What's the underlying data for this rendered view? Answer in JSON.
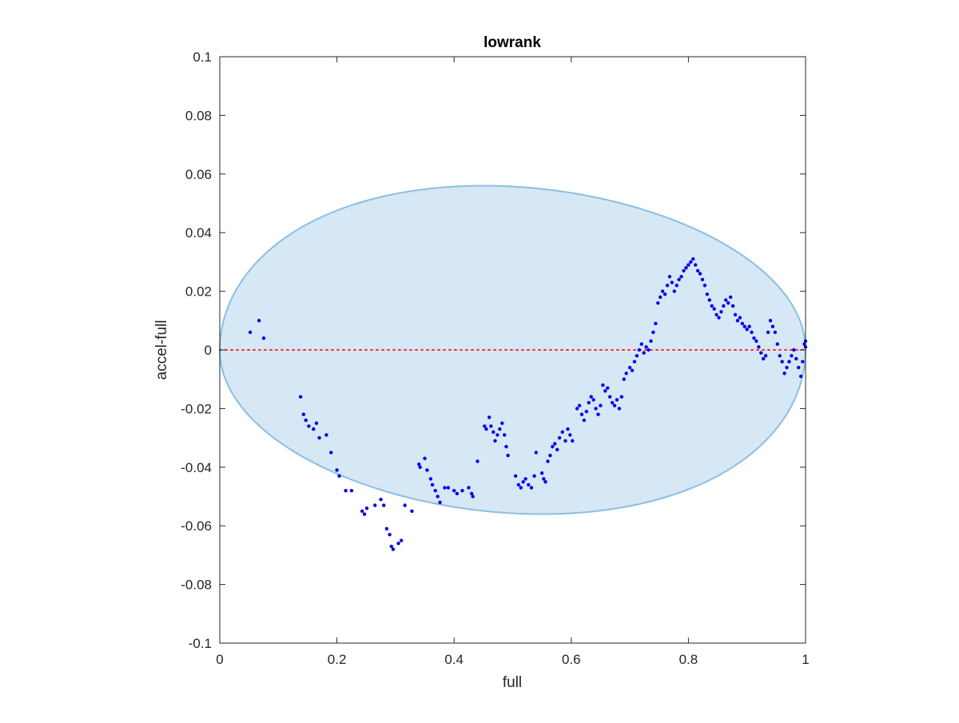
{
  "chart_data": {
    "type": "scatter",
    "title": "lowrank",
    "xlabel": "full",
    "ylabel": "accel-full",
    "xlim": [
      0,
      1
    ],
    "ylim": [
      -0.1,
      0.1
    ],
    "xticks": [
      0,
      0.2,
      0.4,
      0.6,
      0.8,
      1
    ],
    "xtick_labels": [
      "0",
      "0.2",
      "0.4",
      "0.6",
      "0.8",
      "1"
    ],
    "yticks": [
      0.1,
      0.08,
      0.06,
      0.04,
      0.02,
      0,
      -0.02,
      -0.04,
      -0.06,
      -0.08,
      -0.1
    ],
    "ytick_labels": [
      "0.1",
      "0.08",
      "0.06",
      "0.04",
      "0.02",
      "0",
      "-0.02",
      "-0.04",
      "-0.06",
      "-0.08",
      "-0.1"
    ],
    "grid": false,
    "box": true,
    "colors": {
      "points": "#0000ee",
      "ellipse_fill": "#d6e7f5",
      "ellipse_edge": "#8cbfe0",
      "reference_line": "#ff2a2a",
      "axes": "#262626"
    },
    "ellipse": {
      "center": [
        0.5,
        0.0
      ],
      "semi_axis_x": 0.5,
      "semi_axis_y": 0.056,
      "peak_x": 0.45
    },
    "reference_line": {
      "y": 0,
      "style": "dotted"
    },
    "series": [
      {
        "points": [
          [
            0.052,
            0.006
          ],
          [
            0.067,
            0.01
          ],
          [
            0.075,
            0.004
          ],
          [
            0.138,
            -0.016
          ],
          [
            0.143,
            -0.022
          ],
          [
            0.147,
            -0.024
          ],
          [
            0.152,
            -0.026
          ],
          [
            0.16,
            -0.027
          ],
          [
            0.165,
            -0.025
          ],
          [
            0.17,
            -0.03
          ],
          [
            0.182,
            -0.029
          ],
          [
            0.19,
            -0.035
          ],
          [
            0.2,
            -0.041
          ],
          [
            0.204,
            -0.043
          ],
          [
            0.215,
            -0.048
          ],
          [
            0.225,
            -0.048
          ],
          [
            0.243,
            -0.055
          ],
          [
            0.247,
            -0.056
          ],
          [
            0.251,
            -0.054
          ],
          [
            0.265,
            -0.053
          ],
          [
            0.275,
            -0.051
          ],
          [
            0.28,
            -0.053
          ],
          [
            0.285,
            -0.061
          ],
          [
            0.29,
            -0.063
          ],
          [
            0.293,
            -0.067
          ],
          [
            0.296,
            -0.068
          ],
          [
            0.305,
            -0.066
          ],
          [
            0.31,
            -0.065
          ],
          [
            0.316,
            -0.053
          ],
          [
            0.328,
            -0.055
          ],
          [
            0.34,
            -0.039
          ],
          [
            0.342,
            -0.04
          ],
          [
            0.35,
            -0.037
          ],
          [
            0.354,
            -0.041
          ],
          [
            0.36,
            -0.044
          ],
          [
            0.363,
            -0.046
          ],
          [
            0.368,
            -0.048
          ],
          [
            0.372,
            -0.05
          ],
          [
            0.376,
            -0.052
          ],
          [
            0.384,
            -0.047
          ],
          [
            0.39,
            -0.047
          ],
          [
            0.4,
            -0.048
          ],
          [
            0.405,
            -0.049
          ],
          [
            0.414,
            -0.048
          ],
          [
            0.425,
            -0.047
          ],
          [
            0.43,
            -0.049
          ],
          [
            0.432,
            -0.05
          ],
          [
            0.44,
            -0.038
          ],
          [
            0.452,
            -0.026
          ],
          [
            0.455,
            -0.027
          ],
          [
            0.46,
            -0.023
          ],
          [
            0.463,
            -0.026
          ],
          [
            0.467,
            -0.028
          ],
          [
            0.47,
            -0.031
          ],
          [
            0.474,
            -0.029
          ],
          [
            0.478,
            -0.027
          ],
          [
            0.482,
            -0.025
          ],
          [
            0.486,
            -0.029
          ],
          [
            0.489,
            -0.033
          ],
          [
            0.492,
            -0.036
          ],
          [
            0.505,
            -0.043
          ],
          [
            0.51,
            -0.046
          ],
          [
            0.514,
            -0.047
          ],
          [
            0.518,
            -0.045
          ],
          [
            0.522,
            -0.044
          ],
          [
            0.527,
            -0.046
          ],
          [
            0.532,
            -0.047
          ],
          [
            0.537,
            -0.043
          ],
          [
            0.54,
            -0.035
          ],
          [
            0.55,
            -0.042
          ],
          [
            0.553,
            -0.044
          ],
          [
            0.556,
            -0.045
          ],
          [
            0.56,
            -0.038
          ],
          [
            0.564,
            -0.036
          ],
          [
            0.568,
            -0.033
          ],
          [
            0.572,
            -0.032
          ],
          [
            0.576,
            -0.034
          ],
          [
            0.58,
            -0.03
          ],
          [
            0.585,
            -0.028
          ],
          [
            0.59,
            -0.031
          ],
          [
            0.594,
            -0.027
          ],
          [
            0.598,
            -0.029
          ],
          [
            0.602,
            -0.031
          ],
          [
            0.61,
            -0.02
          ],
          [
            0.614,
            -0.019
          ],
          [
            0.618,
            -0.022
          ],
          [
            0.622,
            -0.024
          ],
          [
            0.626,
            -0.021
          ],
          [
            0.63,
            -0.018
          ],
          [
            0.634,
            -0.016
          ],
          [
            0.638,
            -0.017
          ],
          [
            0.642,
            -0.02
          ],
          [
            0.646,
            -0.022
          ],
          [
            0.65,
            -0.019
          ],
          [
            0.654,
            -0.012
          ],
          [
            0.658,
            -0.014
          ],
          [
            0.662,
            -0.013
          ],
          [
            0.666,
            -0.016
          ],
          [
            0.67,
            -0.018
          ],
          [
            0.674,
            -0.019
          ],
          [
            0.678,
            -0.017
          ],
          [
            0.682,
            -0.02
          ],
          [
            0.686,
            -0.016
          ],
          [
            0.69,
            -0.01
          ],
          [
            0.694,
            -0.008
          ],
          [
            0.7,
            -0.006
          ],
          [
            0.704,
            -0.007
          ],
          [
            0.708,
            -0.004
          ],
          [
            0.712,
            -0.002
          ],
          [
            0.716,
            0.0
          ],
          [
            0.72,
            0.002
          ],
          [
            0.724,
            -0.001
          ],
          [
            0.728,
            0.001
          ],
          [
            0.732,
            0.0
          ],
          [
            0.736,
            0.003
          ],
          [
            0.74,
            0.006
          ],
          [
            0.744,
            0.009
          ],
          [
            0.748,
            0.016
          ],
          [
            0.752,
            0.018
          ],
          [
            0.756,
            0.02
          ],
          [
            0.76,
            0.019
          ],
          [
            0.764,
            0.022
          ],
          [
            0.768,
            0.025
          ],
          [
            0.772,
            0.023
          ],
          [
            0.776,
            0.02
          ],
          [
            0.78,
            0.022
          ],
          [
            0.784,
            0.024
          ],
          [
            0.788,
            0.025
          ],
          [
            0.792,
            0.027
          ],
          [
            0.796,
            0.028
          ],
          [
            0.8,
            0.029
          ],
          [
            0.804,
            0.03
          ],
          [
            0.808,
            0.031
          ],
          [
            0.812,
            0.029
          ],
          [
            0.816,
            0.027
          ],
          [
            0.82,
            0.026
          ],
          [
            0.824,
            0.024
          ],
          [
            0.828,
            0.022
          ],
          [
            0.832,
            0.019
          ],
          [
            0.836,
            0.017
          ],
          [
            0.84,
            0.015
          ],
          [
            0.844,
            0.014
          ],
          [
            0.848,
            0.012
          ],
          [
            0.852,
            0.011
          ],
          [
            0.856,
            0.013
          ],
          [
            0.86,
            0.015
          ],
          [
            0.864,
            0.017
          ],
          [
            0.868,
            0.016
          ],
          [
            0.872,
            0.018
          ],
          [
            0.876,
            0.015
          ],
          [
            0.88,
            0.012
          ],
          [
            0.884,
            0.01
          ],
          [
            0.888,
            0.011
          ],
          [
            0.892,
            0.009
          ],
          [
            0.896,
            0.008
          ],
          [
            0.9,
            0.007
          ],
          [
            0.904,
            0.008
          ],
          [
            0.908,
            0.006
          ],
          [
            0.912,
            0.004
          ],
          [
            0.916,
            0.003
          ],
          [
            0.92,
            0.001
          ],
          [
            0.924,
            -0.001
          ],
          [
            0.928,
            -0.003
          ],
          [
            0.932,
            -0.002
          ],
          [
            0.936,
            0.006
          ],
          [
            0.94,
            0.01
          ],
          [
            0.944,
            0.008
          ],
          [
            0.948,
            0.006
          ],
          [
            0.952,
            0.002
          ],
          [
            0.956,
            -0.002
          ],
          [
            0.96,
            -0.004
          ],
          [
            0.964,
            -0.008
          ],
          [
            0.968,
            -0.006
          ],
          [
            0.972,
            -0.004
          ],
          [
            0.976,
            -0.002
          ],
          [
            0.98,
            0.0
          ],
          [
            0.984,
            -0.003
          ],
          [
            0.988,
            -0.006
          ],
          [
            0.992,
            -0.009
          ],
          [
            0.995,
            -0.004
          ],
          [
            0.998,
            0.002
          ],
          [
            1.0,
            0.003
          ],
          [
            1.0,
            0.001
          ]
        ]
      }
    ]
  }
}
